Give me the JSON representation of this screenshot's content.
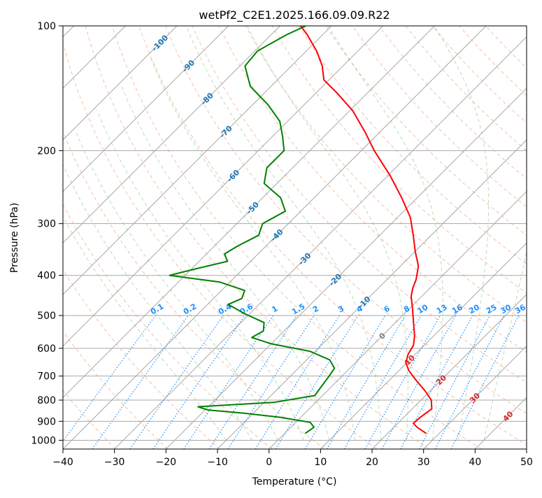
{
  "chart_data": {
    "type": "line",
    "title": "wetPf2_C2E1.2025.166.09.09.R22",
    "xlabel": "Temperature (°C)",
    "ylabel": "Pressure (hPa)",
    "xlim": [
      -40,
      50
    ],
    "ylim": [
      1050,
      100
    ],
    "y_scale": "log",
    "skew": true,
    "grid": true,
    "x_ticks": [
      -40,
      -30,
      -20,
      -10,
      0,
      10,
      20,
      30,
      40,
      50
    ],
    "y_ticks": [
      100,
      200,
      300,
      400,
      500,
      600,
      700,
      800,
      900,
      1000
    ],
    "series": [
      {
        "role": "temperature",
        "color": "#ff0000",
        "points": [
          {
            "p": 963,
            "t": 27.5
          },
          {
            "p": 930,
            "t": 24.5
          },
          {
            "p": 910,
            "t": 23.0
          },
          {
            "p": 880,
            "t": 23.2
          },
          {
            "p": 840,
            "t": 23.8
          },
          {
            "p": 800,
            "t": 22.0
          },
          {
            "p": 760,
            "t": 19.0
          },
          {
            "p": 720,
            "t": 15.5
          },
          {
            "p": 680,
            "t": 12.0
          },
          {
            "p": 650,
            "t": 9.8
          },
          {
            "p": 620,
            "t": 8.6
          },
          {
            "p": 590,
            "t": 7.9
          },
          {
            "p": 560,
            "t": 6.3
          },
          {
            "p": 520,
            "t": 3.5
          },
          {
            "p": 480,
            "t": 0.5
          },
          {
            "p": 450,
            "t": -2.0
          },
          {
            "p": 430,
            "t": -3.3
          },
          {
            "p": 410,
            "t": -4.3
          },
          {
            "p": 380,
            "t": -6.5
          },
          {
            "p": 350,
            "t": -10.0
          },
          {
            "p": 320,
            "t": -13.5
          },
          {
            "p": 290,
            "t": -17.5
          },
          {
            "p": 260,
            "t": -23.0
          },
          {
            "p": 230,
            "t": -29.5
          },
          {
            "p": 200,
            "t": -37.5
          },
          {
            "p": 180,
            "t": -43.0
          },
          {
            "p": 160,
            "t": -49.5
          },
          {
            "p": 145,
            "t": -56.0
          },
          {
            "p": 135,
            "t": -61.0
          },
          {
            "p": 125,
            "t": -64.0
          },
          {
            "p": 115,
            "t": -68.0
          },
          {
            "p": 105,
            "t": -73.0
          },
          {
            "p": 100,
            "t": -76.0
          }
        ]
      },
      {
        "role": "dewpoint",
        "color": "#008000",
        "points": [
          {
            "p": 963,
            "t": 4.0
          },
          {
            "p": 930,
            "t": 4.5
          },
          {
            "p": 905,
            "t": 2.8
          },
          {
            "p": 880,
            "t": -4.0
          },
          {
            "p": 860,
            "t": -12.0
          },
          {
            "p": 845,
            "t": -19.5
          },
          {
            "p": 830,
            "t": -22.0
          },
          {
            "p": 810,
            "t": -8.0
          },
          {
            "p": 780,
            "t": -1.5
          },
          {
            "p": 740,
            "t": -2.0
          },
          {
            "p": 700,
            "t": -2.5
          },
          {
            "p": 670,
            "t": -3.0
          },
          {
            "p": 640,
            "t": -5.5
          },
          {
            "p": 610,
            "t": -11.0
          },
          {
            "p": 585,
            "t": -20.0
          },
          {
            "p": 565,
            "t": -25.0
          },
          {
            "p": 545,
            "t": -24.0
          },
          {
            "p": 520,
            "t": -25.5
          },
          {
            "p": 495,
            "t": -31.0
          },
          {
            "p": 470,
            "t": -36.0
          },
          {
            "p": 455,
            "t": -34.5
          },
          {
            "p": 435,
            "t": -35.5
          },
          {
            "p": 415,
            "t": -42.0
          },
          {
            "p": 400,
            "t": -53.0
          },
          {
            "p": 385,
            "t": -49.0
          },
          {
            "p": 370,
            "t": -44.5
          },
          {
            "p": 355,
            "t": -46.5
          },
          {
            "p": 340,
            "t": -45.5
          },
          {
            "p": 320,
            "t": -43.5
          },
          {
            "p": 300,
            "t": -45.0
          },
          {
            "p": 280,
            "t": -43.0
          },
          {
            "p": 260,
            "t": -46.5
          },
          {
            "p": 240,
            "t": -52.5
          },
          {
            "p": 220,
            "t": -55.0
          },
          {
            "p": 200,
            "t": -55.0
          },
          {
            "p": 185,
            "t": -58.0
          },
          {
            "p": 170,
            "t": -61.5
          },
          {
            "p": 155,
            "t": -67.0
          },
          {
            "p": 140,
            "t": -74.0
          },
          {
            "p": 125,
            "t": -79.0
          },
          {
            "p": 115,
            "t": -79.5
          },
          {
            "p": 105,
            "t": -77.0
          },
          {
            "p": 100,
            "t": -75.0
          }
        ]
      }
    ],
    "isotherm_labels": [
      {
        "text": "-100",
        "t": -100,
        "p": 110
      },
      {
        "text": "-90",
        "t": -90,
        "p": 125
      },
      {
        "text": "-80",
        "t": -80,
        "p": 150
      },
      {
        "text": "-70",
        "t": -70,
        "p": 180
      },
      {
        "text": "-60",
        "t": -60,
        "p": 230
      },
      {
        "text": "-50",
        "t": -50,
        "p": 275
      },
      {
        "text": "-40",
        "t": -40,
        "p": 320
      },
      {
        "text": "-30",
        "t": -30,
        "p": 365
      },
      {
        "text": "-20",
        "t": -20,
        "p": 410
      },
      {
        "text": "-10",
        "t": -10,
        "p": 465
      },
      {
        "text": "0",
        "t": 0,
        "p": 560
      },
      {
        "text": "10",
        "t": 10,
        "p": 640
      },
      {
        "text": "20",
        "t": 20,
        "p": 715
      },
      {
        "text": "30",
        "t": 30,
        "p": 790
      },
      {
        "text": "40",
        "t": 40,
        "p": 875
      }
    ],
    "mixing_ratio_labels": [
      "0.1",
      "0.2",
      "0.4",
      "0.6",
      "1",
      "1.5",
      "2",
      "3",
      "4",
      "6",
      "8",
      "10",
      "13",
      "16",
      "20",
      "25",
      "30",
      "36"
    ],
    "label_colors": {
      "isotherm_cold": "#1f77b4",
      "isotherm_zero": "#808080",
      "isotherm_warm": "#d62728",
      "mixing_ratio": "#1e90ff"
    }
  }
}
